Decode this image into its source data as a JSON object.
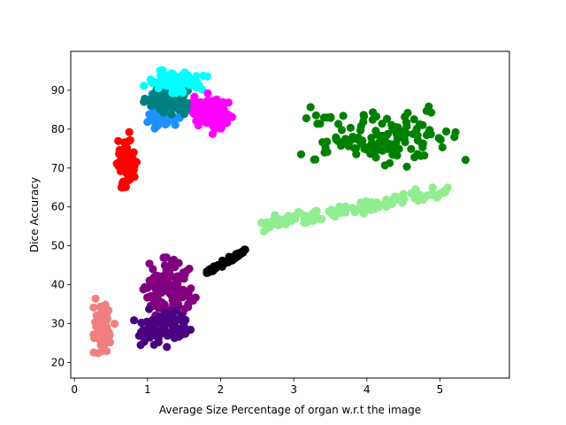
{
  "chart_data": {
    "type": "scatter",
    "title": "",
    "xlabel": "Average Size Percentage of organ w.r.t the image",
    "ylabel": "Dice Accuracy",
    "xlim": [
      -0.05,
      5.95
    ],
    "ylim": [
      16,
      100
    ],
    "xticks": [
      0,
      1,
      2,
      3,
      4,
      5
    ],
    "yticks": [
      20,
      30,
      40,
      50,
      60,
      70,
      80,
      90
    ],
    "grid": false,
    "legend": "none",
    "clusters": [
      {
        "color": "#f08080",
        "count": 90,
        "x": [
          0.22,
          0.55
        ],
        "y": [
          20,
          38
        ],
        "center": [
          0.4,
          28
        ]
      },
      {
        "color": "#800080",
        "count": 110,
        "x": [
          0.85,
          1.75
        ],
        "y": [
          29,
          47
        ],
        "center": [
          1.3,
          39
        ]
      },
      {
        "color": "#4b0082",
        "count": 90,
        "x": [
          0.75,
          1.7
        ],
        "y": [
          24,
          36
        ],
        "center": [
          1.2,
          29
        ]
      },
      {
        "color": "#000000",
        "count": 60,
        "x": [
          1.8,
          2.35
        ],
        "y": [
          43,
          49
        ],
        "center": [
          2.1,
          46
        ]
      },
      {
        "color": "#90ee90",
        "count": 120,
        "x": [
          2.55,
          5.15
        ],
        "y": [
          53,
          65
        ],
        "center": [
          4.0,
          59
        ]
      },
      {
        "color": "#008000",
        "count": 130,
        "x": [
          3.1,
          5.7
        ],
        "y": [
          69,
          86
        ],
        "center": [
          4.2,
          78
        ]
      },
      {
        "color": "#ff0000",
        "count": 80,
        "x": [
          0.5,
          0.85
        ],
        "y": [
          62,
          81
        ],
        "center": [
          0.7,
          71
        ]
      },
      {
        "color": "#1e90ff",
        "count": 70,
        "x": [
          1.0,
          1.55
        ],
        "y": [
          78,
          90
        ],
        "center": [
          1.2,
          84
        ]
      },
      {
        "color": "#008080",
        "count": 90,
        "x": [
          0.95,
          1.65
        ],
        "y": [
          83,
          91
        ],
        "center": [
          1.3,
          87.5
        ]
      },
      {
        "color": "#00ffff",
        "count": 90,
        "x": [
          0.95,
          1.85
        ],
        "y": [
          88,
          96
        ],
        "center": [
          1.4,
          92
        ]
      },
      {
        "color": "#ff00ff",
        "count": 100,
        "x": [
          1.55,
          2.2
        ],
        "y": [
          78,
          90
        ],
        "center": [
          1.85,
          84
        ]
      }
    ]
  }
}
